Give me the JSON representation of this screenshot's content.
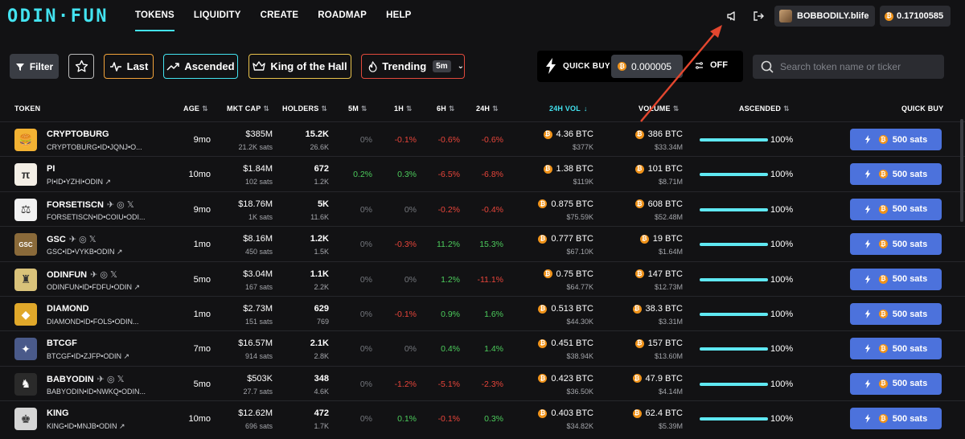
{
  "nav": {
    "logo": "ODIN·FUN",
    "links": [
      "TOKENS",
      "LIQUIDITY",
      "CREATE",
      "ROADMAP",
      "HELP"
    ],
    "active_link": "TOKENS",
    "username": "BOBBODILY.blife",
    "balance": "0.17100585"
  },
  "filters": {
    "filter_label": "Filter",
    "last_label": "Last",
    "ascended_label": "Ascended",
    "king_label": "King of the Hall",
    "trending_label": "Trending",
    "trending_period": "5m",
    "quick_buy_label": "QUICK BUY",
    "quick_buy_value": "0.000005",
    "toggle_label": "OFF",
    "search_placeholder": "Search token name or ticker"
  },
  "table": {
    "headers": {
      "token": "TOKEN",
      "age": "AGE",
      "mkt_cap": "MKT CAP",
      "holders": "HOLDERS",
      "m5": "5M",
      "h1": "1H",
      "h6": "6H",
      "h24": "24H",
      "vol24": "24H VOL",
      "volume": "VOLUME",
      "ascended": "ASCENDED",
      "quick_buy": "QUICK BUY"
    },
    "buy_label": "500 sats",
    "rows": [
      {
        "name": "CRYPTOBURG",
        "id": "CRYPTOBURG•ID•JQNJ•O...",
        "age": "9mo",
        "mcap": "$385M",
        "mcap_sats": "21.2K sats",
        "holders": "15.2K",
        "holders_sub": "26.6K",
        "m5": "0%",
        "h1": "-0.1%",
        "h6": "-0.6%",
        "h24": "-0.6%",
        "vol": "4.36 BTC",
        "vol_usd": "$377K",
        "volume": "386 BTC",
        "volume_usd": "$33.34M",
        "ascended": "100%",
        "ascended_fraction": 1.0,
        "icon_color": "#f2b233",
        "icon_glyph": "🍔",
        "socials": false
      },
      {
        "name": "PI",
        "id": "PI•ID•YZHI•ODIN",
        "age": "10mo",
        "mcap": "$1.84M",
        "mcap_sats": "102 sats",
        "holders": "672",
        "holders_sub": "1.2K",
        "m5": "0.2%",
        "h1": "0.3%",
        "h6": "-6.5%",
        "h24": "-6.8%",
        "vol": "1.38 BTC",
        "vol_usd": "$119K",
        "volume": "101 BTC",
        "volume_usd": "$8.71M",
        "ascended": "100%",
        "ascended_fraction": 1.0,
        "icon_color": "#f4efe6",
        "icon_glyph": "π",
        "socials": false
      },
      {
        "name": "FORSETISCN",
        "id": "FORSETISCN•ID•COIU•ODI...",
        "age": "9mo",
        "mcap": "$18.76M",
        "mcap_sats": "1K sats",
        "holders": "5K",
        "holders_sub": "11.6K",
        "m5": "0%",
        "h1": "0%",
        "h6": "-0.2%",
        "h24": "-0.4%",
        "vol": "0.875 BTC",
        "vol_usd": "$75.59K",
        "volume": "608 BTC",
        "volume_usd": "$52.48M",
        "ascended": "100%",
        "ascended_fraction": 1.0,
        "icon_color": "#f2f2f2",
        "icon_glyph": "⚖",
        "socials": true
      },
      {
        "name": "GSC",
        "id": "GSC•ID•VYKB•ODIN",
        "age": "1mo",
        "mcap": "$8.16M",
        "mcap_sats": "450 sats",
        "holders": "1.2K",
        "holders_sub": "1.5K",
        "m5": "0%",
        "h1": "-0.3%",
        "h6": "11.2%",
        "h24": "15.3%",
        "vol": "0.777 BTC",
        "vol_usd": "$67.10K",
        "volume": "19 BTC",
        "volume_usd": "$1.64M",
        "ascended": "100%",
        "ascended_fraction": 1.0,
        "icon_color": "#8a6a3a",
        "icon_glyph": "GSC",
        "socials": true
      },
      {
        "name": "ODINFUN",
        "id": "ODINFUN•ID•FDFU•ODIN",
        "age": "5mo",
        "mcap": "$3.04M",
        "mcap_sats": "167 sats",
        "holders": "1.1K",
        "holders_sub": "2.2K",
        "m5": "0%",
        "h1": "0%",
        "h6": "1.2%",
        "h24": "-11.1%",
        "vol": "0.75 BTC",
        "vol_usd": "$64.77K",
        "volume": "147 BTC",
        "volume_usd": "$12.73M",
        "ascended": "100%",
        "ascended_fraction": 1.0,
        "icon_color": "#d9c27a",
        "icon_glyph": "♜",
        "socials": true
      },
      {
        "name": "DIAMOND",
        "id": "DIAMOND•ID•FOLS•ODIN...",
        "age": "1mo",
        "mcap": "$2.73M",
        "mcap_sats": "151 sats",
        "holders": "629",
        "holders_sub": "769",
        "m5": "0%",
        "h1": "-0.1%",
        "h6": "0.9%",
        "h24": "1.6%",
        "vol": "0.513 BTC",
        "vol_usd": "$44.30K",
        "volume": "38.3 BTC",
        "volume_usd": "$3.31M",
        "ascended": "100%",
        "ascended_fraction": 1.0,
        "icon_color": "#e0a82a",
        "icon_glyph": "◆",
        "socials": false
      },
      {
        "name": "BTCGF",
        "id": "BTCGF•ID•ZJFP•ODIN",
        "age": "7mo",
        "mcap": "$16.57M",
        "mcap_sats": "914 sats",
        "holders": "2.1K",
        "holders_sub": "2.8K",
        "m5": "0%",
        "h1": "0%",
        "h6": "0.4%",
        "h24": "1.4%",
        "vol": "0.451 BTC",
        "vol_usd": "$38.94K",
        "volume": "157 BTC",
        "volume_usd": "$13.60M",
        "ascended": "100%",
        "ascended_fraction": 1.0,
        "icon_color": "#4a5a8a",
        "icon_glyph": "✦",
        "socials": false
      },
      {
        "name": "BABYODIN",
        "id": "BABYODIN•ID•NWKQ•ODIN...",
        "age": "5mo",
        "mcap": "$503K",
        "mcap_sats": "27.7 sats",
        "holders": "348",
        "holders_sub": "4.6K",
        "m5": "0%",
        "h1": "-1.2%",
        "h6": "-5.1%",
        "h24": "-2.3%",
        "vol": "0.423 BTC",
        "vol_usd": "$36.50K",
        "volume": "47.9 BTC",
        "volume_usd": "$4.14M",
        "ascended": "100%",
        "ascended_fraction": 1.0,
        "icon_color": "#2a2a2a",
        "icon_glyph": "♞",
        "socials": true
      },
      {
        "name": "KING",
        "id": "KING•ID•MNJB•ODIN",
        "age": "10mo",
        "mcap": "$12.62M",
        "mcap_sats": "696 sats",
        "holders": "472",
        "holders_sub": "1.7K",
        "m5": "0%",
        "h1": "0.1%",
        "h6": "-0.1%",
        "h24": "0.3%",
        "vol": "0.403 BTC",
        "vol_usd": "$34.82K",
        "volume": "62.4 BTC",
        "volume_usd": "$5.39M",
        "ascended": "100%",
        "ascended_fraction": 1.0,
        "icon_color": "#d6d6d6",
        "icon_glyph": "♚",
        "socials": false
      }
    ]
  },
  "colors": {
    "accent": "#43e3f0",
    "negative": "#e8453a",
    "positive": "#4ccc5c",
    "neutral": "#74777d",
    "buy_button": "#4c72dc",
    "btc_orange": "#f0931a",
    "annotation_arrow": "#e4472f"
  }
}
